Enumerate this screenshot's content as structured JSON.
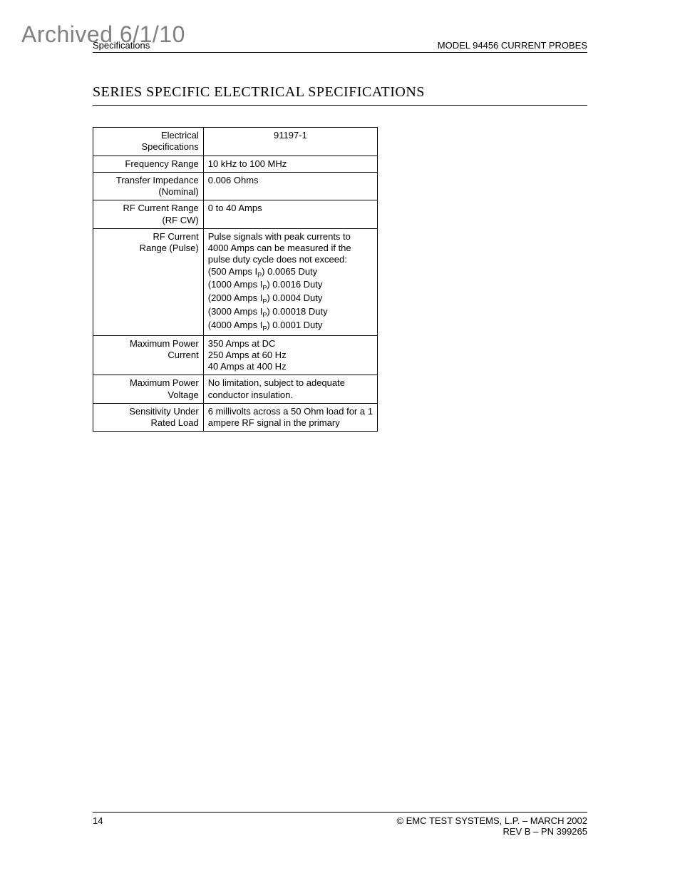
{
  "watermark": "Archived 6/1/10",
  "header": {
    "left": "Specifications",
    "right": "MODEL 94456 CURRENT PROBES"
  },
  "section_title": "SERIES SPECIFIC ELECTRICAL SPECIFICATIONS",
  "table": {
    "header": {
      "label": "Electrical Specifications",
      "value": "91197-1"
    },
    "rows": [
      {
        "label": "Frequency Range",
        "value": "10 kHz to 100 MHz"
      },
      {
        "label": "Transfer Impedance (Nominal)",
        "value": "0.006 Ohms"
      },
      {
        "label": "RF Current Range (RF CW)",
        "value": "0 to 40 Amps"
      },
      {
        "label": "RF Current Range (Pulse)",
        "value_lines": [
          "Pulse signals with peak currents to 4000 Amps can be measured if the pulse duty cycle does not exceed:",
          "(500 Amps I{P}) 0.0065 Duty",
          "(1000 Amps I{P}) 0.0016 Duty",
          "(2000 Amps I{P}) 0.0004 Duty",
          "(3000 Amps I{P}) 0.00018 Duty",
          "(4000 Amps I{P}) 0.0001 Duty"
        ]
      },
      {
        "label": "Maximum Power Current",
        "value_lines": [
          "350 Amps at DC",
          "250 Amps at 60 Hz",
          "40 Amps at 400 Hz"
        ]
      },
      {
        "label": "Maximum Power Voltage",
        "value": "No limitation, subject to adequate conductor insulation."
      },
      {
        "label": "Sensitivity Under Rated Load",
        "value": "6 millivolts across a 50 Ohm load for a 1 ampere RF signal in the primary"
      }
    ]
  },
  "footer": {
    "page": "14",
    "right1": "© EMC TEST SYSTEMS, L.P. – MARCH 2002",
    "right2": "REV B – PN 399265"
  }
}
